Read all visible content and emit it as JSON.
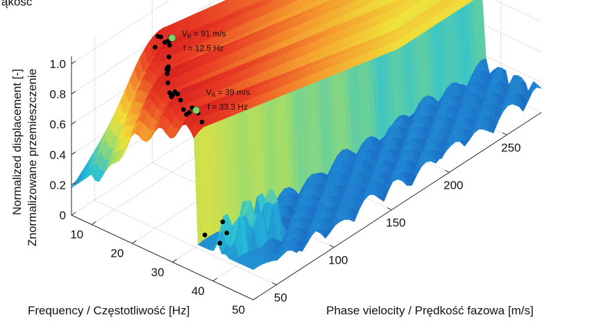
{
  "chart_data": {
    "type": "surface-3d",
    "title": "",
    "top_text_fragment": "ąkość",
    "colors": {
      "low": "#1f5fbf",
      "mid": "#e8e03a",
      "high": "#e52320",
      "points": "#000000",
      "highlight": "#7fd36b"
    },
    "zlabel_lines": [
      "Normalized displacement [-]",
      "Znormalizowane przemieszczenie"
    ],
    "ylabel": "Frequency / Częstotliwość [Hz]",
    "xlabel": "Phase vielocity / Prędkość fazowa [m/s]",
    "z_ticks": [
      "0",
      "0.2",
      "0.4",
      "0.6",
      "0.8",
      "1.0"
    ],
    "y_ticks": [
      "10",
      "20",
      "30",
      "40",
      "50"
    ],
    "x_ticks": [
      "50",
      "100",
      "150",
      "200",
      "250"
    ],
    "zlim": [
      0,
      1
    ],
    "ylim": [
      5,
      50
    ],
    "xlim": [
      30,
      280
    ],
    "grid": true,
    "dispersion_points": [
      {
        "f": 8,
        "v": 92
      },
      {
        "f": 9,
        "v": 91
      },
      {
        "f": 10,
        "v": 90
      },
      {
        "f": 11,
        "v": 90
      },
      {
        "f": 12,
        "v": 89
      },
      {
        "f": 13,
        "v": 88
      },
      {
        "f": 14,
        "v": 84
      },
      {
        "f": 15,
        "v": 80
      },
      {
        "f": 16,
        "v": 76
      },
      {
        "f": 17,
        "v": 72
      },
      {
        "f": 18,
        "v": 68
      },
      {
        "f": 19,
        "v": 64
      },
      {
        "f": 20,
        "v": 60
      },
      {
        "f": 21,
        "v": 57
      },
      {
        "f": 22,
        "v": 54
      },
      {
        "f": 23,
        "v": 52
      },
      {
        "f": 24,
        "v": 50
      },
      {
        "f": 25,
        "v": 48
      },
      {
        "f": 26,
        "v": 46
      },
      {
        "f": 27,
        "v": 45
      },
      {
        "f": 28,
        "v": 44
      },
      {
        "f": 29,
        "v": 43
      },
      {
        "f": 30,
        "v": 42
      },
      {
        "f": 31,
        "v": 41
      },
      {
        "f": 32,
        "v": 40
      },
      {
        "f": 33,
        "v": 39
      },
      {
        "f": 34,
        "v": 38
      },
      {
        "f": 35,
        "v": 38
      },
      {
        "f": 36,
        "v": 37
      },
      {
        "f": 40,
        "v": 36
      },
      {
        "f": 41,
        "v": 35
      },
      {
        "f": 42,
        "v": 35
      }
    ],
    "highlights": [
      {
        "f": 12.5,
        "v": 91,
        "label_vr": "V",
        "label_sub": "R",
        "label_vr_value": " = 91 m/s",
        "label_f": "f = 12.5 Hz"
      },
      {
        "f": 33.3,
        "v": 39,
        "label_vr": "V",
        "label_sub": "R",
        "label_vr_value": " = 39 m/s",
        "label_f": "f = 33.3 Hz"
      }
    ]
  }
}
